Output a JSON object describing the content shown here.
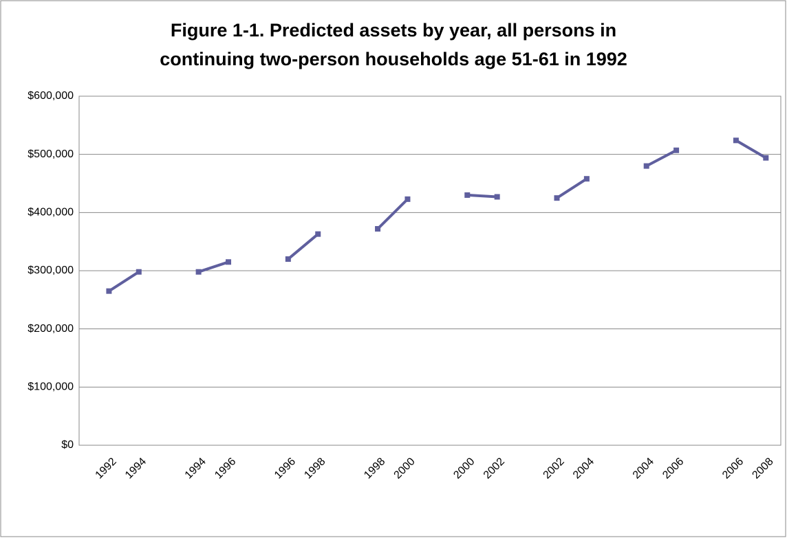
{
  "chart_data": {
    "type": "line",
    "title": [
      "Figure 1-1.  Predicted assets by year, all persons in",
      "continuing two-person households age 51-61 in 1992"
    ],
    "categories": [
      "1992",
      "1994",
      null,
      "1994",
      "1996",
      null,
      "1996",
      "1998",
      null,
      "1998",
      "2000",
      null,
      "2000",
      "2002",
      null,
      "2002",
      "2004",
      null,
      "2004",
      "2006",
      null,
      "2006",
      "2008"
    ],
    "series": [
      {
        "color": "#5f5f9e",
        "values": [
          265000,
          298000,
          null,
          298000,
          315000,
          null,
          320000,
          363000,
          null,
          372000,
          423000,
          null,
          430000,
          427000,
          null,
          425000,
          458000,
          null,
          480000,
          507000,
          null,
          524000,
          494000
        ]
      }
    ],
    "ylim": [
      0,
      600000
    ],
    "yticks": [
      {
        "value": 0,
        "label": "$0"
      },
      {
        "value": 100000,
        "label": "$100,000"
      },
      {
        "value": 200000,
        "label": "$200,000"
      },
      {
        "value": 300000,
        "label": "$300,000"
      },
      {
        "value": 400000,
        "label": "$400,000"
      },
      {
        "value": 500000,
        "label": "$500,000"
      },
      {
        "value": 600000,
        "label": "$600,000"
      }
    ],
    "grid": true
  }
}
